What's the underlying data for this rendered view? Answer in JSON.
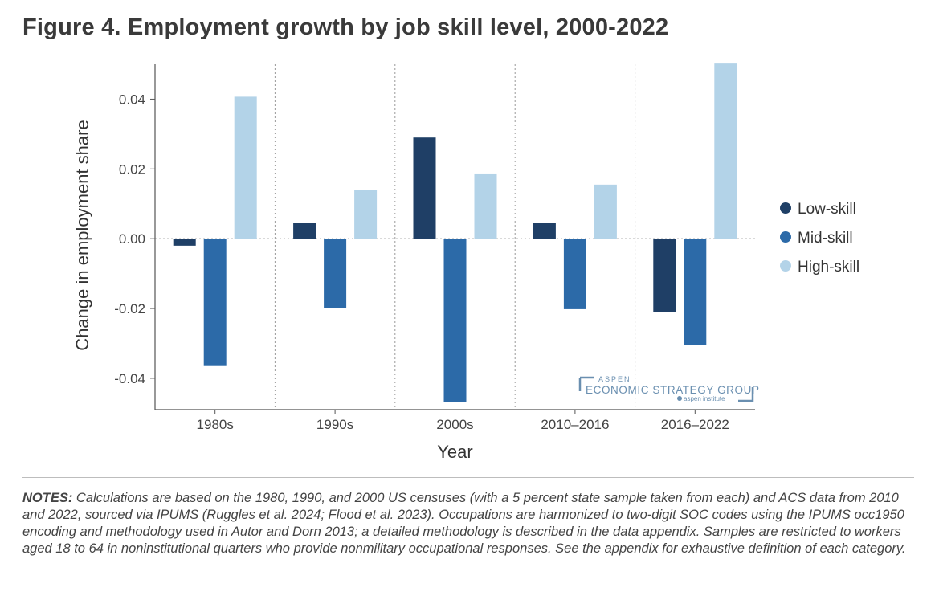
{
  "title": "Figure 4. Employment growth by job skill level, 2000-2022",
  "colors": {
    "low": "#1f3f66",
    "mid": "#2c6aa8",
    "high": "#b3d3e8",
    "axis": "#555555",
    "grid": "#9a9a9a"
  },
  "chart_data": {
    "type": "bar",
    "title": "Figure 4. Employment growth by job skill level, 2000-2022",
    "xlabel": "Year",
    "ylabel": "Change in employment share",
    "categories": [
      "1980s",
      "1990s",
      "2000s",
      "2010–2016",
      "2016–2022"
    ],
    "series": [
      {
        "name": "Low-skill",
        "values": [
          -0.002,
          0.0045,
          0.029,
          0.0045,
          -0.021
        ]
      },
      {
        "name": "Mid-skill",
        "values": [
          -0.0365,
          -0.0198,
          -0.0468,
          -0.0202,
          -0.0305
        ]
      },
      {
        "name": "High-skill",
        "values": [
          0.0407,
          0.014,
          0.0187,
          0.0155,
          0.0502
        ]
      }
    ],
    "ylim": [
      -0.049,
      0.05
    ],
    "yticks": [
      0.04,
      0.02,
      0.0,
      -0.02,
      -0.04
    ],
    "ytick_labels": [
      "0.04",
      "0.02",
      "0.00",
      "-0.02",
      "-0.04"
    ],
    "grid": false,
    "legend_position": "right"
  },
  "watermark": {
    "top": "ASPEN",
    "main": "ECONOMIC STRATEGY GROUP",
    "sub": "aspen institute"
  },
  "notes": {
    "label": "NOTES:",
    "text": " Calculations are based on the 1980, 1990, and 2000 US censuses (with a 5 percent state sample taken from each) and ACS data from 2010 and 2022, sourced via IPUMS (Ruggles et al. 2024; Flood et al. 2023). Occupations are harmonized to two-digit SOC codes using the IPUMS occ1950 encoding and methodology used in Autor and Dorn 2013; a detailed methodology is described in the data appendix. Samples are restricted to workers aged 18 to 64 in noninstitutional quarters who provide nonmilitary occupational responses. See the appendix for exhaustive definition of each category."
  }
}
